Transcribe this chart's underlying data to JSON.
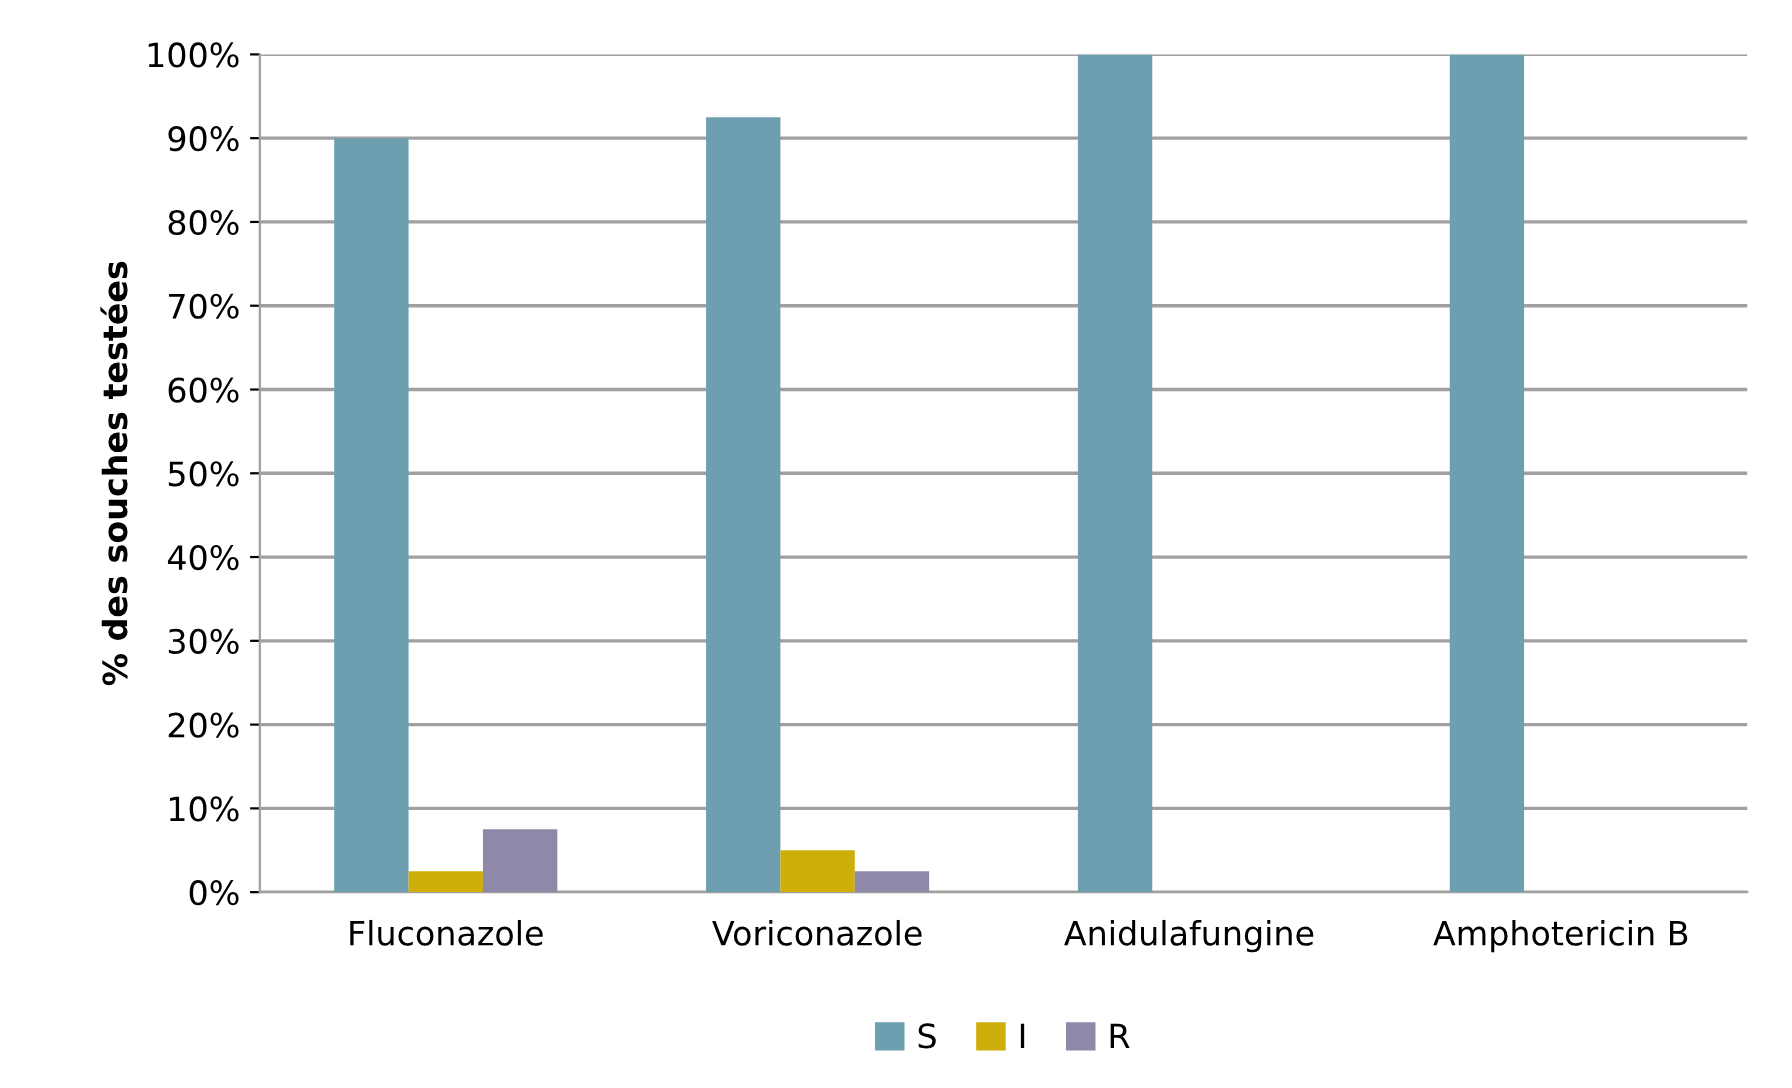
{
  "chart_data": {
    "type": "bar",
    "ylabel": "% des souches testées",
    "categories": [
      "Fluconazole",
      "Voriconazole",
      "Anidulafungine",
      "Amphotericin B"
    ],
    "series": [
      {
        "name": "S",
        "color": "#6e9fb0",
        "values": [
          90,
          92.5,
          100,
          100
        ]
      },
      {
        "name": "I",
        "color": "#cdae0a",
        "values": [
          2.5,
          5,
          0,
          0
        ]
      },
      {
        "name": "R",
        "color": "#8f88a8",
        "values": [
          7.5,
          2.5,
          0,
          0
        ]
      }
    ],
    "ylim": [
      0,
      100
    ],
    "yticks": [
      {
        "value": 0,
        "label": "0%"
      },
      {
        "value": 10,
        "label": "10%"
      },
      {
        "value": 20,
        "label": "20%"
      },
      {
        "value": 30,
        "label": "30%"
      },
      {
        "value": 40,
        "label": "40%"
      },
      {
        "value": 50,
        "label": "50%"
      },
      {
        "value": 60,
        "label": "60%"
      },
      {
        "value": 70,
        "label": "70%"
      },
      {
        "value": 80,
        "label": "80%"
      },
      {
        "value": 90,
        "label": "90%"
      },
      {
        "value": 100,
        "label": "100%"
      }
    ],
    "grid": "y",
    "legend": "bottom"
  }
}
